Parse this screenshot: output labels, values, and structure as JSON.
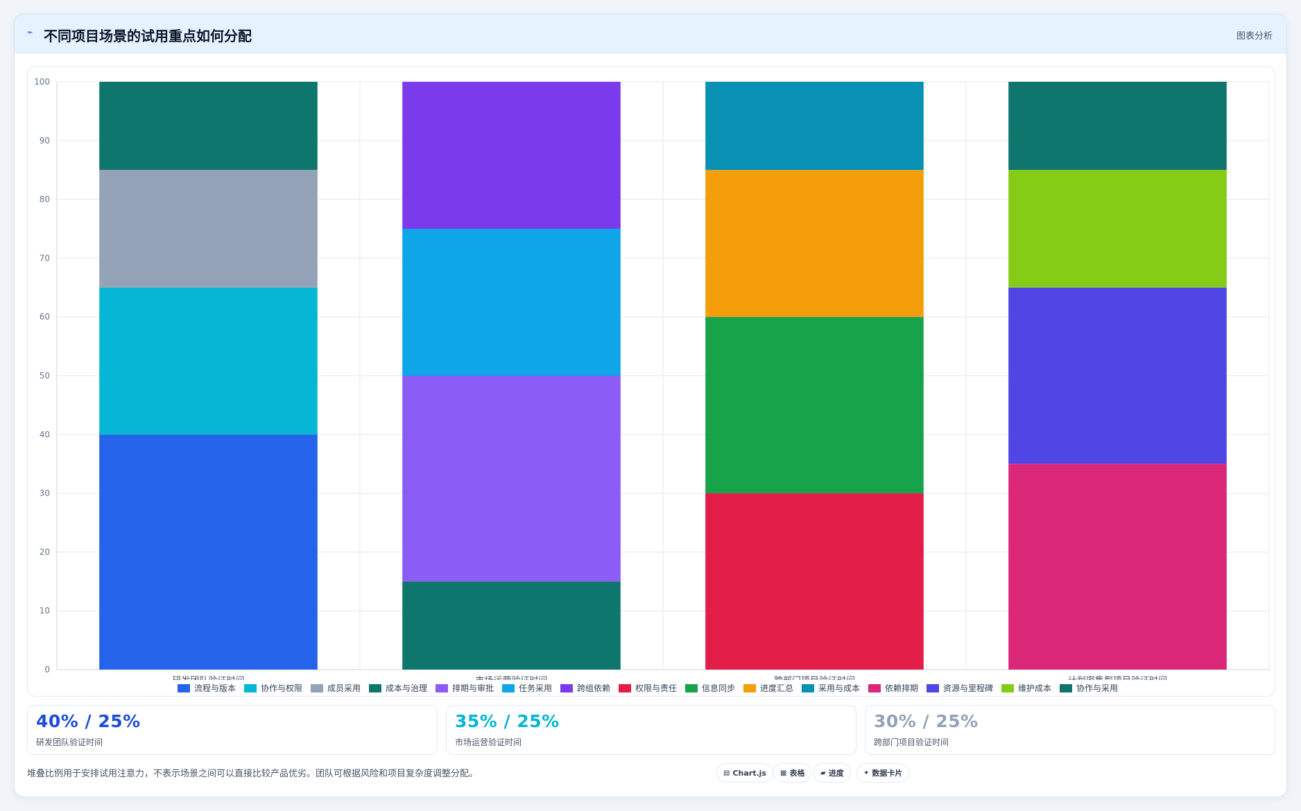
{
  "header": {
    "icon": "chart-line-icon",
    "title": "不同项目场景的试用重点如何分配",
    "tag": "图表分析"
  },
  "chart_data": {
    "type": "bar",
    "stacked": true,
    "categories": [
      "研发团队验证时间",
      "市场运营验证时间",
      "跨部门项目验证时间",
      "计划密集型项目验证时间"
    ],
    "ylim": [
      0,
      100
    ],
    "yticks": [
      0,
      10,
      20,
      30,
      40,
      50,
      60,
      70,
      80,
      90,
      100
    ],
    "grid": true,
    "legend_position": "bottom",
    "series": [
      {
        "name": "流程与版本",
        "color": "#2563eb",
        "values": [
          40,
          0,
          0,
          0
        ]
      },
      {
        "name": "协作与权限",
        "color": "#06b6d4",
        "values": [
          25,
          0,
          0,
          0
        ]
      },
      {
        "name": "成员采用",
        "color": "#94a3b8",
        "values": [
          20,
          0,
          0,
          0
        ]
      },
      {
        "name": "成本与治理",
        "color": "#0f766e",
        "values": [
          15,
          0,
          0,
          0
        ]
      },
      {
        "name": "排期与审批",
        "color": "#8b5cf6",
        "values": [
          0,
          35,
          0,
          0
        ]
      },
      {
        "name": "任务采用",
        "color": "#0ea5e9",
        "values": [
          0,
          25,
          0,
          0
        ]
      },
      {
        "name": "跨组依赖",
        "color": "#7c3aed",
        "values": [
          0,
          25,
          0,
          0
        ]
      },
      {
        "name": "权限与责任",
        "color": "#e11d48",
        "values": [
          0,
          0,
          30,
          0
        ]
      },
      {
        "name": "信息同步",
        "color": "#16a34a",
        "values": [
          0,
          0,
          30,
          0
        ]
      },
      {
        "name": "进度汇总",
        "color": "#f59e0b",
        "values": [
          0,
          0,
          25,
          0
        ]
      },
      {
        "name": "采用与成本",
        "color": "#0891b2",
        "values": [
          0,
          0,
          15,
          0
        ]
      },
      {
        "name": "依赖排期",
        "color": "#db2777",
        "values": [
          0,
          0,
          0,
          35
        ]
      },
      {
        "name": "资源与里程碑",
        "color": "#4f46e5",
        "values": [
          0,
          0,
          0,
          30
        ]
      },
      {
        "name": "维护成本",
        "color": "#84cc16",
        "values": [
          0,
          0,
          0,
          20
        ]
      },
      {
        "name": "协作与采用",
        "color": "#0f766e",
        "values": [
          0,
          0,
          0,
          15
        ]
      }
    ],
    "bottom_segments": [
      {
        "category": 1,
        "name": "",
        "color": "#0f766e",
        "value": 15
      }
    ]
  },
  "stats": [
    {
      "value": "40% / 25%",
      "label": "研发团队验证时间",
      "color": "#1d4ed8"
    },
    {
      "value": "35% / 25%",
      "label": "市场运营验证时间",
      "color": "#06b6d4"
    },
    {
      "value": "30% / 25%",
      "label": "跨部门项目验证时间",
      "color": "#94a3b8"
    }
  ],
  "footnote": "堆叠比例用于安排试用注意力，不表示场景之间可以直接比较产品优劣。团队可根据风险和项目复杂度调整分配。",
  "tools": [
    {
      "icon": "chart-icon",
      "glyph": "▤",
      "label": "Chart.js"
    },
    {
      "icon": "table-icon",
      "glyph": "▦",
      "label": "表格"
    },
    {
      "icon": "progress-icon",
      "glyph": "▰",
      "label": "进度"
    },
    {
      "icon": "sparkle-icon",
      "glyph": "✦",
      "label": "数据卡片"
    }
  ]
}
